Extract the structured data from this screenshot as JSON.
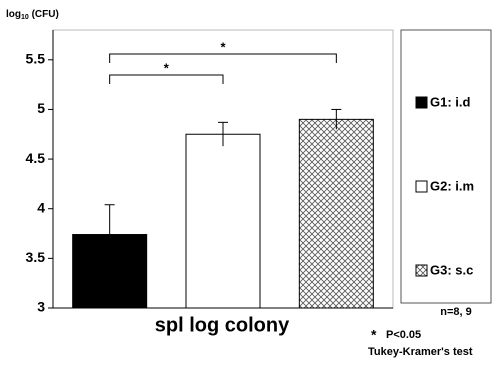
{
  "chart_data": {
    "type": "bar",
    "y_label": {
      "base": "log",
      "subscript": "10",
      "unit": "(CFU)"
    },
    "x_label": "spl log colony",
    "categories": [
      null,
      null,
      null
    ],
    "values": [
      3.74,
      4.75,
      4.9
    ],
    "errors": [
      0.3,
      0.12,
      0.1
    ],
    "fills": [
      "#000000",
      "#ffffff",
      "crosshatch"
    ],
    "legend": [
      "G1: i.d",
      "G2: i.m",
      "G3: s.c"
    ],
    "significance": [
      "*",
      "*"
    ],
    "notes": [
      "n=8, 9",
      "P<0.05",
      "Tukey-Kramer's test"
    ],
    "note_symbol": "*",
    "ylim": [
      3,
      5.8
    ],
    "yticks": [
      3,
      3.5,
      4,
      4.5,
      5,
      5.5
    ],
    "grid": false
  }
}
